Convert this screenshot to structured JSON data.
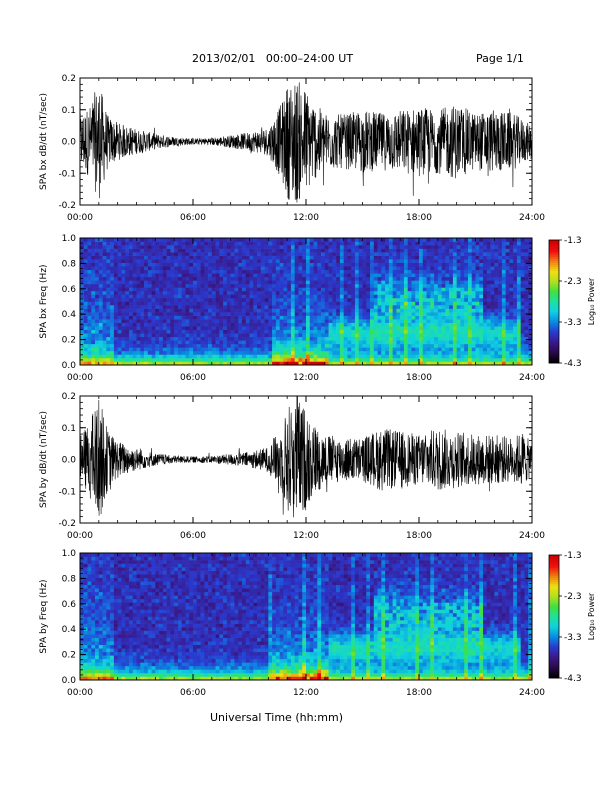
{
  "header": {
    "title": "2013/02/01   00:00–24:00 UT",
    "page": "Page 1/1"
  },
  "footer": {
    "xlabel": "Universal Time (hh:mm)"
  },
  "colorbar": {
    "label": "Log₁₀ Power",
    "ticks": [
      "-1.3",
      "-2.3",
      "-3.3",
      "-4.3"
    ],
    "range": [
      -4.3,
      -1.3
    ],
    "colors": [
      "#000000",
      "#2a0a4a",
      "#3a1a8a",
      "#2a3ad0",
      "#0a8ae0",
      "#10d0e0",
      "#20e0a0",
      "#40e040",
      "#b0e020",
      "#f0e010",
      "#f08010",
      "#f01010",
      "#d00000"
    ]
  },
  "chart_data": [
    {
      "type": "line",
      "name": "bx-timeseries",
      "ylabel": "SPA bx dB/dt (nT/sec)",
      "xlim": [
        0,
        24
      ],
      "ylim": [
        -0.2,
        0.2
      ],
      "xticks": [
        "00:00",
        "06:00",
        "12:00",
        "18:00",
        "24:00"
      ],
      "yticks": [
        "0.2",
        "0.1",
        "0.0",
        "-0.1",
        "-0.2"
      ],
      "envelope": {
        "hours": [
          0,
          0.5,
          1,
          1.5,
          2,
          3,
          4,
          5,
          6,
          7,
          8,
          9,
          10,
          10.7,
          11,
          11.5,
          12,
          12.5,
          13,
          14,
          15,
          16,
          17,
          18,
          19,
          20,
          21,
          22,
          23,
          23.5,
          24
        ],
        "amplitude": [
          0.09,
          0.11,
          0.19,
          0.08,
          0.06,
          0.04,
          0.025,
          0.015,
          0.01,
          0.012,
          0.02,
          0.03,
          0.045,
          0.12,
          0.18,
          0.2,
          0.17,
          0.12,
          0.09,
          0.085,
          0.1,
          0.09,
          0.1,
          0.11,
          0.1,
          0.12,
          0.09,
          0.1,
          0.09,
          0.07,
          0.05
        ]
      }
    },
    {
      "type": "heatmap",
      "name": "bx-spectrogram",
      "ylabel": "SPA bx Freq (Hz)",
      "xlim": [
        0,
        24
      ],
      "ylim": [
        0,
        1.0
      ],
      "xticks": [
        "00:00",
        "06:00",
        "12:00",
        "18:00",
        "24:00"
      ],
      "yticks": [
        "1.0",
        "0.8",
        "0.6",
        "0.4",
        "0.2",
        "0.0"
      ],
      "zlabel": "Log₁₀ Power",
      "zlim": [
        -4.3,
        -1.3
      ]
    },
    {
      "type": "line",
      "name": "by-timeseries",
      "ylabel": "SPA by dB/dt (nT/sec)",
      "xlim": [
        0,
        24
      ],
      "ylim": [
        -0.2,
        0.2
      ],
      "xticks": [
        "00:00",
        "06:00",
        "12:00",
        "18:00",
        "24:00"
      ],
      "yticks": [
        "0.2",
        "0.1",
        "0.0",
        "-0.1",
        "-0.2"
      ],
      "envelope": {
        "hours": [
          0,
          0.5,
          1,
          1.5,
          2,
          3,
          4,
          5,
          6,
          7,
          8,
          9,
          10,
          10.7,
          11,
          11.5,
          12,
          12.5,
          13,
          14,
          15,
          16,
          17,
          18,
          19,
          20,
          21,
          22,
          23,
          23.5,
          24
        ],
        "amplitude": [
          0.07,
          0.12,
          0.2,
          0.09,
          0.06,
          0.035,
          0.02,
          0.012,
          0.01,
          0.012,
          0.018,
          0.025,
          0.04,
          0.1,
          0.17,
          0.2,
          0.16,
          0.11,
          0.08,
          0.07,
          0.07,
          0.1,
          0.09,
          0.08,
          0.1,
          0.09,
          0.08,
          0.08,
          0.07,
          0.09,
          0.05
        ]
      }
    },
    {
      "type": "heatmap",
      "name": "by-spectrogram",
      "ylabel": "SPA by Freq (Hz)",
      "xlim": [
        0,
        24
      ],
      "ylim": [
        0,
        1.0
      ],
      "xticks": [
        "00:00",
        "06:00",
        "12:00",
        "18:00",
        "24:00"
      ],
      "yticks": [
        "1.0",
        "0.8",
        "0.6",
        "0.4",
        "0.2",
        "0.0"
      ],
      "zlabel": "Log₁₀ Power",
      "zlim": [
        -4.3,
        -1.3
      ]
    }
  ]
}
